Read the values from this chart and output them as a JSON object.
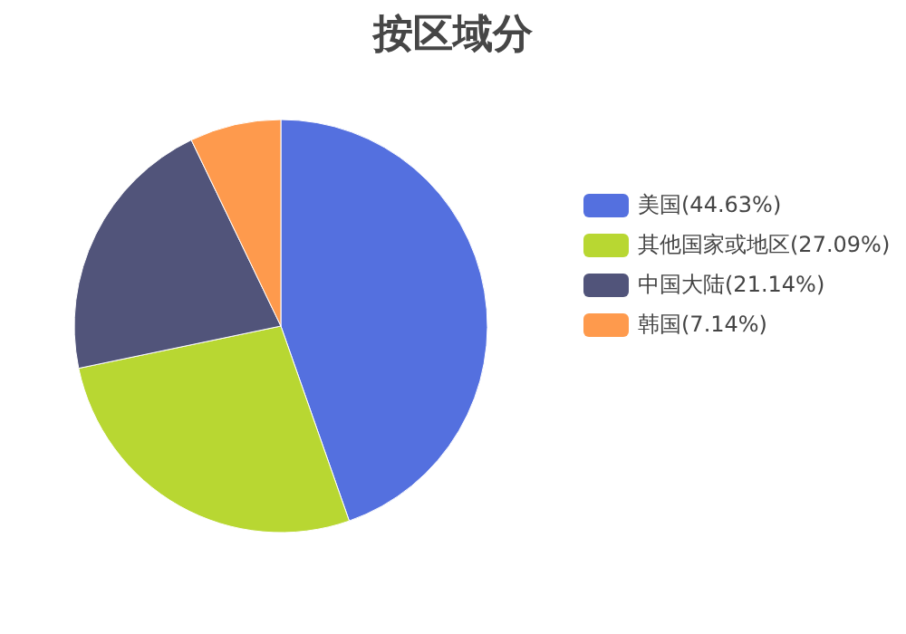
{
  "chart_data": {
    "type": "pie",
    "title": "按区域分",
    "categories": [
      "美国",
      "其他国家或地区",
      "中国大陆",
      "韩国"
    ],
    "values": [
      44.63,
      27.09,
      21.14,
      7.14
    ],
    "value_labels": [
      "(44.63%)",
      "(27.09%)",
      "(21.14%)",
      "(7.14%)"
    ],
    "colors": [
      "#5470df",
      "#b8d732",
      "#51547a",
      "#fe9a4d"
    ],
    "legend": "right"
  }
}
